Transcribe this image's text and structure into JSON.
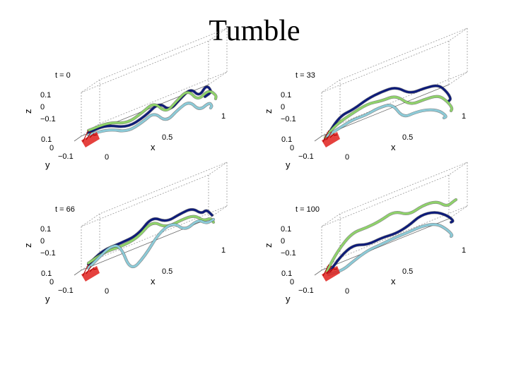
{
  "title": "Tumble",
  "colors": {
    "flagellum_1": "#0d1b7a",
    "flagellum_2": "#8fd36a",
    "flagellum_3": "#8ccbd8",
    "cell_body": "#e0201c"
  },
  "panels": [
    {
      "time_label": "t = 0"
    },
    {
      "time_label": "t = 33"
    },
    {
      "time_label": "t = 66"
    },
    {
      "time_label": "t = 100"
    }
  ],
  "axes": {
    "z_label": "z",
    "x_label": "x",
    "y_label": "y",
    "z_ticks": [
      "0.1",
      "0",
      "−0.1"
    ],
    "y_ticks": [
      "0.1",
      "0",
      "−0.1"
    ],
    "x_ticks": [
      "0",
      "0.5",
      "1"
    ]
  }
}
